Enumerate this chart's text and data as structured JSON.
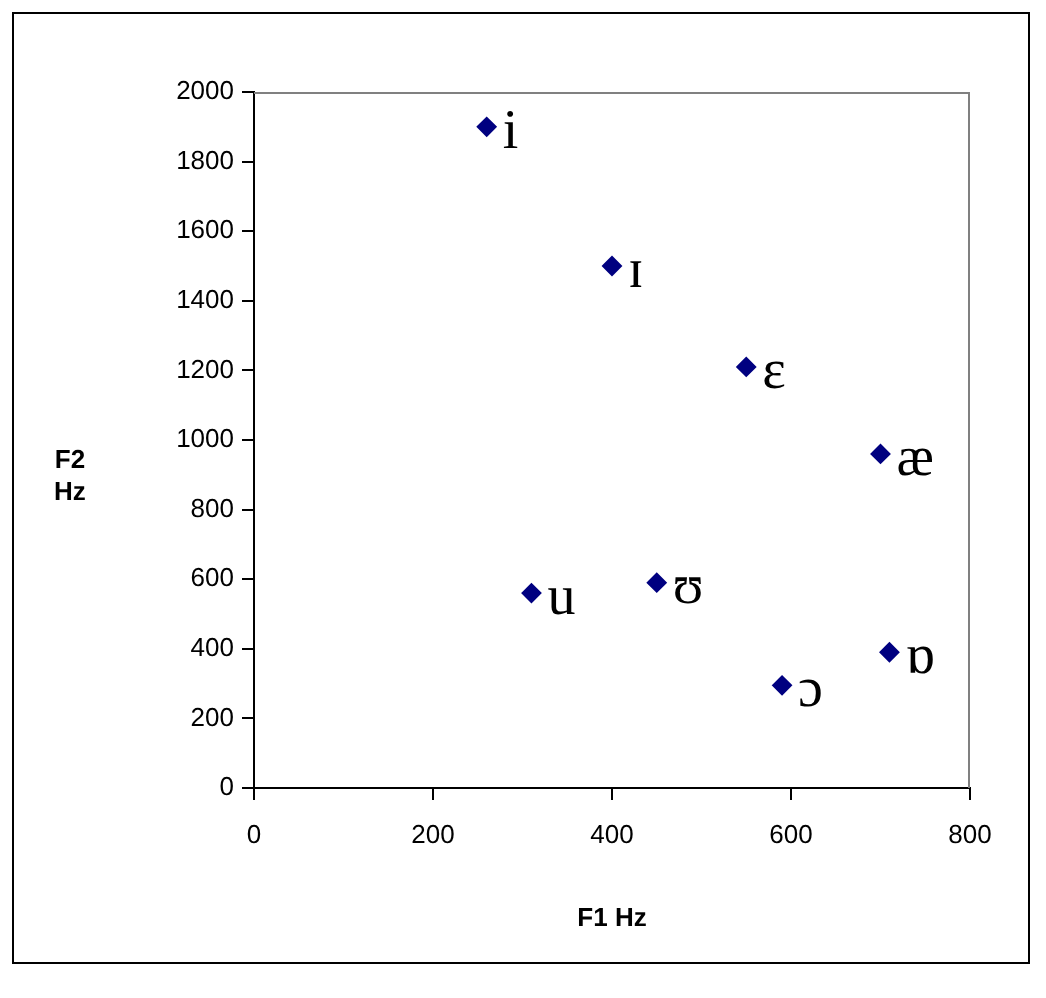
{
  "chart_data": {
    "type": "scatter",
    "xlabel": "F1 Hz",
    "ylabel": "F2 Hz",
    "x": [
      260,
      400,
      550,
      700,
      310,
      450,
      590,
      710
    ],
    "series": [
      {
        "color": "#000080",
        "values": [
          1900,
          1500,
          1210,
          960,
          560,
          590,
          295,
          390
        ]
      }
    ],
    "xlim": [
      0,
      800
    ],
    "xticks": [
      0,
      200,
      400,
      600,
      800
    ],
    "ylim": [
      0,
      2000
    ],
    "yticks": [
      0,
      200,
      400,
      600,
      800,
      1000,
      1200,
      1400,
      1600,
      1800,
      2000
    ],
    "grid": false,
    "legend": false,
    "marker": "diamond",
    "annotations": [
      {
        "text": "i",
        "x": 260,
        "y": 1900
      },
      {
        "text": "ɪ",
        "x": 400,
        "y": 1500
      },
      {
        "text": "ɛ",
        "x": 550,
        "y": 1210
      },
      {
        "text": "æ",
        "x": 700,
        "y": 960
      },
      {
        "text": "u",
        "x": 310,
        "y": 560
      },
      {
        "text": "ʊ",
        "x": 450,
        "y": 590
      },
      {
        "text": "ɔ",
        "x": 590,
        "y": 295
      },
      {
        "text": "ɒ",
        "x": 710,
        "y": 390
      }
    ]
  }
}
